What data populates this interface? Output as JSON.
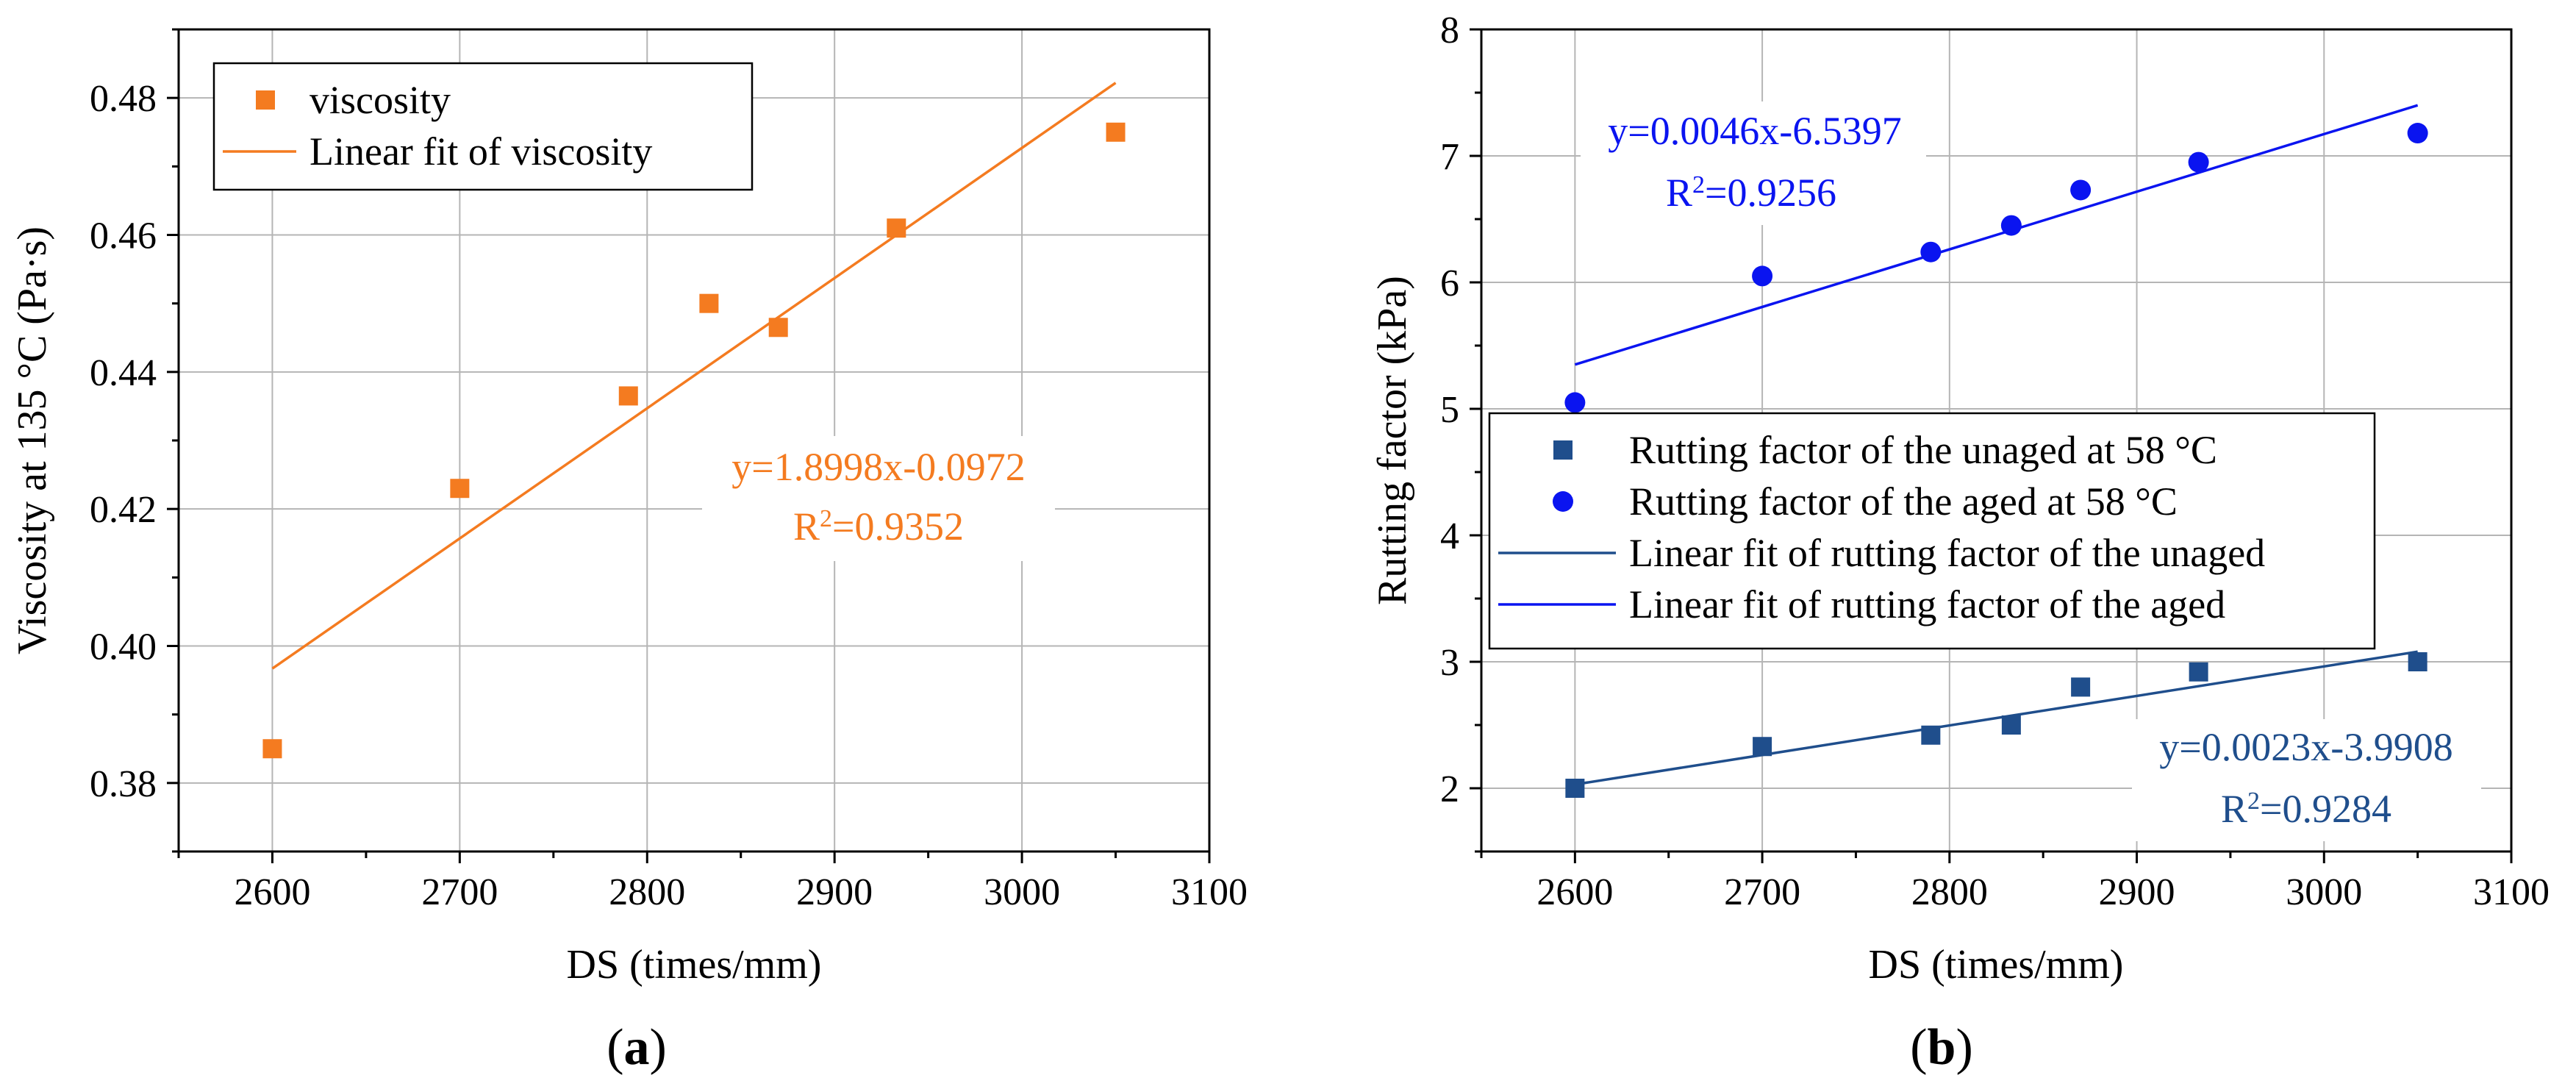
{
  "chart_data": [
    {
      "id": "a",
      "type": "scatter",
      "panel_label": "a",
      "xlabel": "DS (times/mm)",
      "ylabel": "Viscosity at 135 °C (Pa·s)",
      "xlim": [
        2550,
        3100
      ],
      "ylim": [
        0.37,
        0.49
      ],
      "x_ticks": [
        2600,
        2700,
        2800,
        2900,
        3000,
        3100
      ],
      "x_tick_labels": [
        "2600",
        "2700",
        "2800",
        "2900",
        "3000",
        "3100"
      ],
      "y_ticks": [
        0.38,
        0.4,
        0.42,
        0.44,
        0.46,
        0.48
      ],
      "y_tick_labels": [
        "0.38",
        "0.40",
        "0.42",
        "0.44",
        "0.46",
        "0.48"
      ],
      "grid": true,
      "series": [
        {
          "name": "viscosity",
          "kind": "scatter",
          "marker": "square",
          "color": "#F47B20",
          "x": [
            2600,
            2700,
            2790,
            2833,
            2870,
            2933,
            3050
          ],
          "y": [
            0.385,
            0.423,
            0.4365,
            0.45,
            0.4465,
            0.461,
            0.475
          ]
        },
        {
          "name": "Linear fit of viscosity",
          "kind": "line",
          "color": "#F47B20",
          "x": [
            2600,
            3050
          ],
          "y": [
            0.3967,
            0.4822
          ]
        }
      ],
      "legend": {
        "position": "top-left",
        "entries": [
          "viscosity",
          "Linear fit of viscosity"
        ]
      },
      "annotations": [
        {
          "id": "eq",
          "line1": "y=1.8998x-0.0972",
          "r_prefix": "R",
          "r_sup": "2",
          "r_value": "=0.9352",
          "color": "#F47B20"
        }
      ]
    },
    {
      "id": "b",
      "type": "scatter",
      "panel_label": "b",
      "xlabel": "DS (times/mm)",
      "ylabel": "Rutting factor (kPa)",
      "xlim": [
        2550,
        3100
      ],
      "ylim": [
        1.5,
        8
      ],
      "x_ticks": [
        2600,
        2700,
        2800,
        2900,
        3000,
        3100
      ],
      "x_tick_labels": [
        "2600",
        "2700",
        "2800",
        "2900",
        "3000",
        "3100"
      ],
      "y_ticks": [
        2,
        3,
        4,
        5,
        6,
        7,
        8
      ],
      "y_tick_labels": [
        "2",
        "3",
        "4",
        "5",
        "6",
        "7",
        "8"
      ],
      "grid": true,
      "series": [
        {
          "name": "Rutting factor of the unaged at 58 °C",
          "kind": "scatter",
          "marker": "square",
          "color": "#1F4E8C",
          "x": [
            2600,
            2700,
            2790,
            2833,
            2870,
            2933,
            3050
          ],
          "y": [
            2.0,
            2.33,
            2.42,
            2.5,
            2.8,
            2.92,
            3.0
          ]
        },
        {
          "name": "Rutting factor of the aged at 58 °C",
          "kind": "scatter",
          "marker": "circle",
          "color": "#0A14F0",
          "x": [
            2600,
            2700,
            2790,
            2833,
            2870,
            2933,
            3050
          ],
          "y": [
            5.05,
            6.05,
            6.24,
            6.45,
            6.73,
            6.95,
            7.18
          ]
        },
        {
          "name": "Linear fit of rutting factor of the unaged",
          "kind": "line",
          "color": "#1F4E8C",
          "x": [
            2600,
            3050
          ],
          "y": [
            2.03,
            3.08
          ]
        },
        {
          "name": "Linear fit of rutting factor of the aged",
          "kind": "line",
          "color": "#0A14F0",
          "x": [
            2600,
            3050
          ],
          "y": [
            5.35,
            7.4
          ]
        }
      ],
      "legend": {
        "position": "center-left",
        "entries": [
          "Rutting factor of the unaged at 58 °C",
          "Rutting factor of the aged at 58 °C",
          "Linear fit of rutting factor of the unaged",
          "Linear fit of rutting factor of the aged"
        ]
      },
      "annotations": [
        {
          "id": "eq_aged",
          "line1": "y=0.0046x-6.5397",
          "r_prefix": "R",
          "r_sup": "2",
          "r_value": "=0.9256",
          "color": "#0A14F0"
        },
        {
          "id": "eq_unaged",
          "line1": "y=0.0023x-3.9908",
          "r_prefix": "R",
          "r_sup": "2",
          "r_value": "=0.9284",
          "color": "#1F4E8C"
        }
      ]
    }
  ]
}
